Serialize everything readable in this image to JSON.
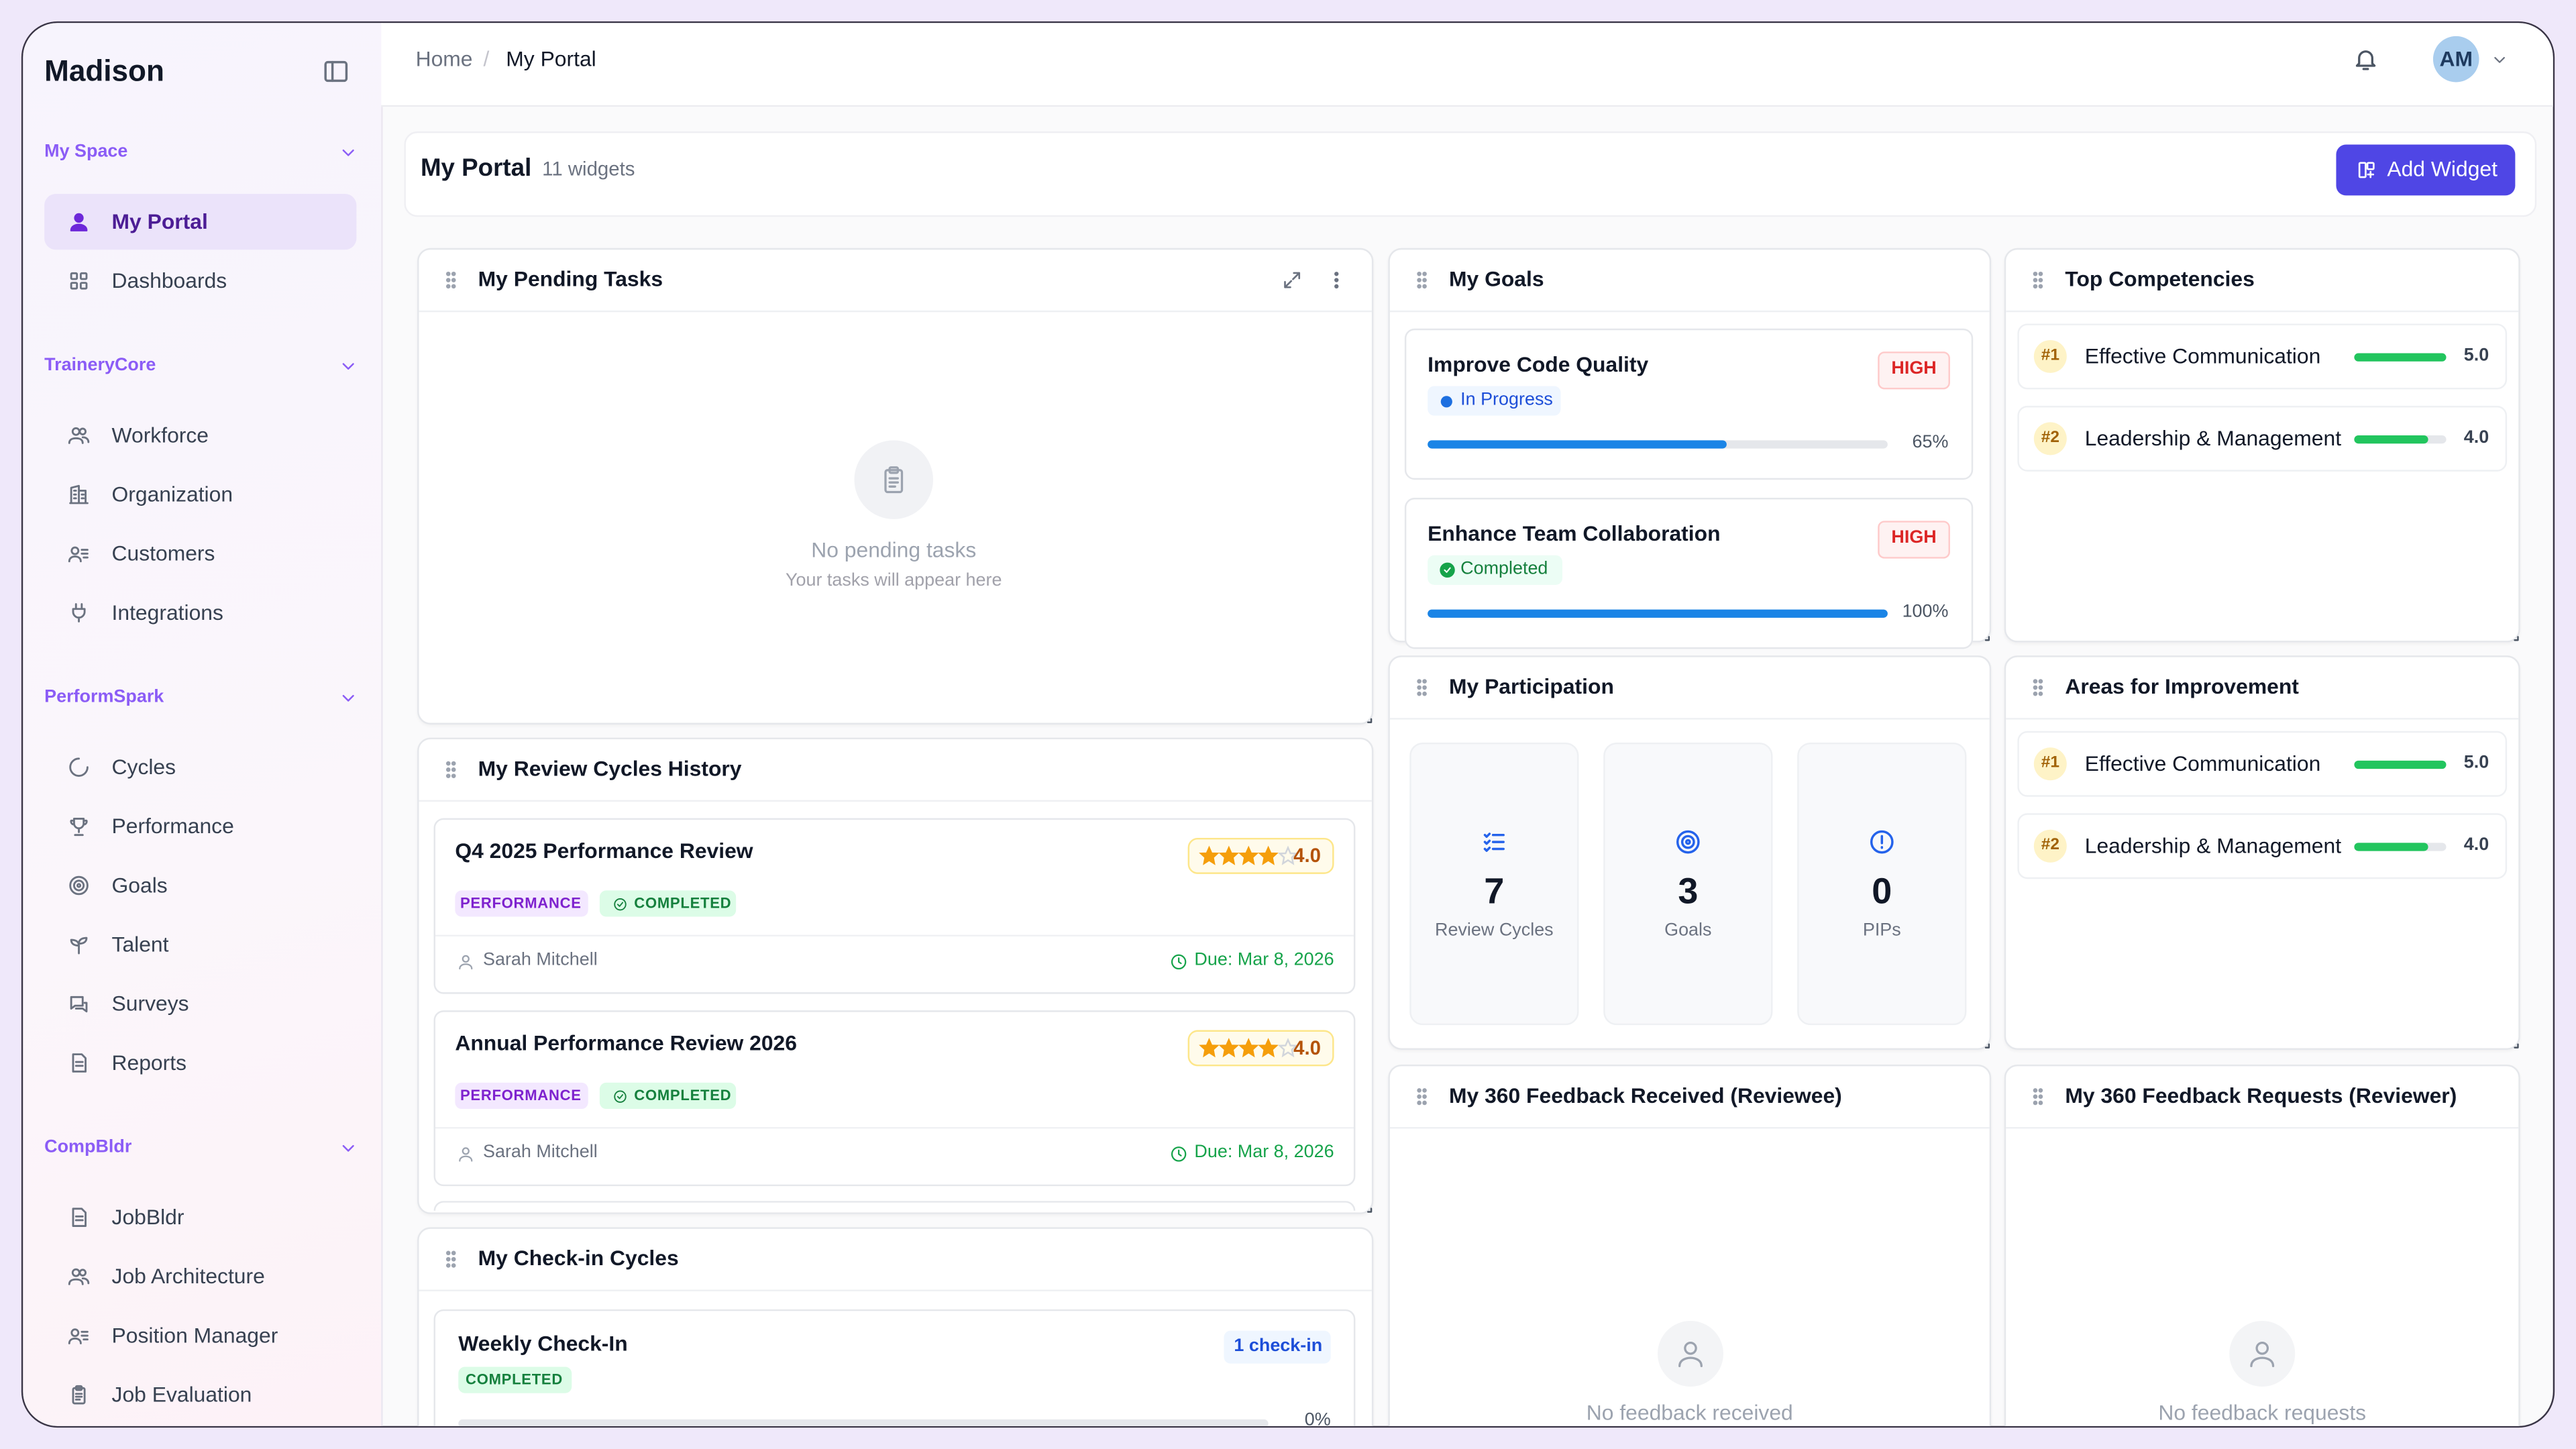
{
  "app": {
    "brand": "Madison",
    "avatar": "AM"
  },
  "sidebar": {
    "sections": [
      {
        "title": "My Space",
        "items": [
          "My Portal",
          "Dashboards"
        ]
      },
      {
        "title": "TraineryCore",
        "items": [
          "Workforce",
          "Organization",
          "Customers",
          "Integrations"
        ]
      },
      {
        "title": "PerformSpark",
        "items": [
          "Cycles",
          "Performance",
          "Goals",
          "Talent",
          "Surveys",
          "Reports"
        ]
      },
      {
        "title": "CompBldr",
        "items": [
          "JobBldr",
          "Job Architecture",
          "Position Manager",
          "Job Evaluation"
        ]
      }
    ]
  },
  "breadcrumb": {
    "items": [
      "Home",
      "My Portal"
    ],
    "separator": "/"
  },
  "portal": {
    "title": "My Portal",
    "count_label": "11 widgets",
    "add_button": "Add Widget"
  },
  "pending_tasks": {
    "title": "My Pending Tasks",
    "empty_title": "No pending tasks",
    "empty_subtitle": "Your tasks will appear here"
  },
  "review_history": {
    "title": "My Review Cycles History",
    "rating_scale": [
      0,
      5
    ],
    "items": [
      {
        "name": "Q4 2025 Performance Review",
        "rating": 4,
        "rating_label": "4.0",
        "type": "PERFORMANCE",
        "status": "COMPLETED",
        "reviewer": "Sarah Mitchell",
        "due": "Due: Mar 8, 2026"
      },
      {
        "name": "Annual Performance Review 2026",
        "rating": 4,
        "rating_label": "4.0",
        "type": "PERFORMANCE",
        "status": "COMPLETED",
        "reviewer": "Sarah Mitchell",
        "due": "Due: Mar 8, 2026"
      }
    ]
  },
  "checkins": {
    "title": "My Check-in Cycles",
    "progress_scale": [
      0,
      100
    ],
    "items": [
      {
        "name": "Weekly Check-In",
        "count": "1 check-in",
        "status": "COMPLETED",
        "progress": 0,
        "progress_label": "0%"
      }
    ]
  },
  "goals": {
    "title": "My Goals",
    "progress_scale": [
      0,
      100
    ],
    "items": [
      {
        "name": "Improve Code Quality",
        "priority": "HIGH",
        "status": "In Progress",
        "progress": 65,
        "progress_label": "65%"
      },
      {
        "name": "Enhance Team Collaboration",
        "priority": "HIGH",
        "status": "Completed",
        "progress": 100,
        "progress_label": "100%"
      }
    ]
  },
  "participation": {
    "title": "My Participation",
    "stats": [
      {
        "value": 7,
        "label": "Review Cycles"
      },
      {
        "value": 3,
        "label": "Goals"
      },
      {
        "value": 0,
        "label": "PIPs"
      }
    ]
  },
  "top_competencies": {
    "title": "Top Competencies",
    "score_scale": [
      0,
      5
    ],
    "items": [
      {
        "rank": "#1",
        "name": "Effective Communication",
        "score": 5,
        "score_label": "5.0"
      },
      {
        "rank": "#2",
        "name": "Leadership & Management",
        "score": 4,
        "score_label": "4.0"
      }
    ]
  },
  "areas_for_improvement": {
    "title": "Areas for Improvement",
    "score_scale": [
      0,
      5
    ],
    "items": [
      {
        "rank": "#1",
        "name": "Effective Communication",
        "score": 5,
        "score_label": "5.0"
      },
      {
        "rank": "#2",
        "name": "Leadership & Management",
        "score": 4,
        "score_label": "4.0"
      }
    ]
  },
  "feedback_received": {
    "title": "My 360 Feedback Received (Reviewee)",
    "empty_title": "No feedback received"
  },
  "feedback_requests": {
    "title": "My 360 Feedback Requests (Reviewer)",
    "empty_title": "No feedback requests"
  }
}
